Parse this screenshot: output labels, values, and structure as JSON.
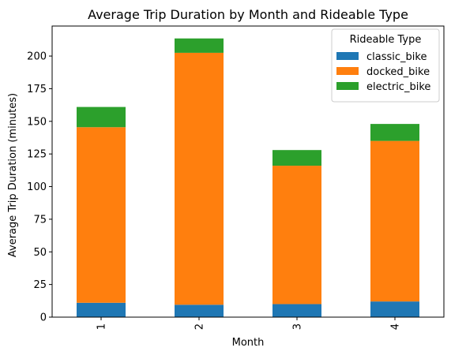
{
  "chart_data": {
    "type": "bar",
    "stacked": true,
    "title": "Average Trip Duration by Month and Rideable Type",
    "xlabel": "Month",
    "ylabel": "Average Trip Duration (minutes)",
    "categories": [
      "1",
      "2",
      "3",
      "4"
    ],
    "ylim": [
      0,
      223
    ],
    "yticks": [
      0,
      25,
      50,
      75,
      100,
      125,
      150,
      175,
      200
    ],
    "legend": {
      "title": "Rideable Type",
      "position": "top-right"
    },
    "series": [
      {
        "name": "classic_bike",
        "color": "#1f77b4",
        "values": [
          11,
          9.5,
          10,
          12
        ]
      },
      {
        "name": "docked_bike",
        "color": "#ff7f0e",
        "values": [
          134.5,
          193,
          106,
          123
        ]
      },
      {
        "name": "electric_bike",
        "color": "#2ca02c",
        "values": [
          15.5,
          11,
          12,
          13
        ]
      }
    ]
  }
}
